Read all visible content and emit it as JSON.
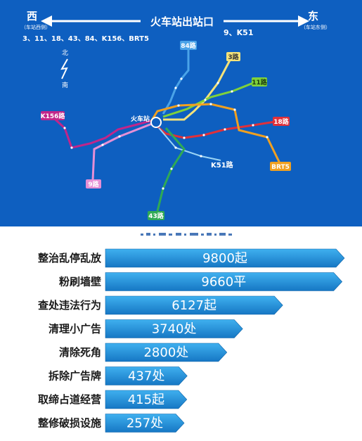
{
  "map": {
    "header": {
      "west": "西",
      "west_sub": "（车站西侧）",
      "title": "火车站出站口",
      "east": "东",
      "east_sub": "（车站东侧）",
      "west_routes": "3、11、18、43、84、K156、BRT5",
      "east_routes": "9、K51"
    },
    "compass": {
      "north": "北",
      "south": "南"
    },
    "center_label": "火车站",
    "routes": [
      {
        "label": "84路",
        "color": "#4aa3e8"
      },
      {
        "label": "3路",
        "color": "#f4e27a"
      },
      {
        "label": "11路",
        "color": "#7fd13b"
      },
      {
        "label": "18路",
        "color": "#e0303a"
      },
      {
        "label": "BRT5",
        "color": "#f0a020"
      },
      {
        "label": "K51路",
        "color": "#9ad4f5"
      },
      {
        "label": "43路",
        "color": "#2faa55"
      },
      {
        "label": "9路",
        "color": "#e58fd5"
      },
      {
        "label": "K156路",
        "color": "#c1268a"
      }
    ]
  },
  "chart_data": {
    "type": "bar",
    "orientation": "horizontal",
    "categories": [
      "整治乱停乱放",
      "粉刷墙壁",
      "查处违法行为",
      "清理小广告",
      "清除死角",
      "拆除广告牌",
      "取缔占道经营",
      "整修破损设施"
    ],
    "values": [
      9800,
      9660,
      6127,
      3740,
      2800,
      437,
      415,
      257
    ],
    "value_labels": [
      "9800起",
      "9660平",
      "6127起",
      "3740处",
      "2800处",
      "437处",
      "415起",
      "257处"
    ],
    "bar_color": "#1e8fd6"
  }
}
